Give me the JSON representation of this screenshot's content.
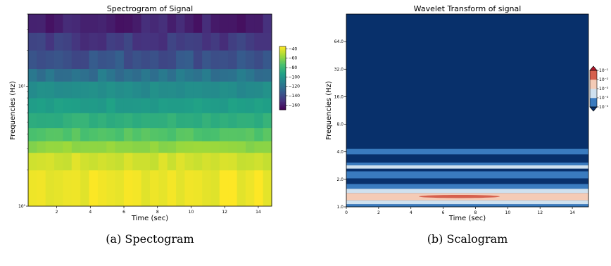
{
  "captions": {
    "a": "(a) Spectogram",
    "b": "(b) Scalogram"
  },
  "colors": {
    "viridis": [
      "#440154",
      "#46337e",
      "#365c8d",
      "#277f8e",
      "#1fa187",
      "#4ac16d",
      "#a0da39",
      "#fde725"
    ],
    "wavelet_levels": [
      "#08306b",
      "#3a7bbf",
      "#cfe1ef",
      "#f4cbb6",
      "#d6604d",
      "#b2182b"
    ]
  },
  "chart_data": [
    {
      "type": "heatmap",
      "title": "Spectrogram of Signal",
      "xlabel": "Time (sec)",
      "ylabel": "Frequencies (Hz)",
      "xlim": [
        0.3,
        14.8
      ],
      "yscale": "log",
      "ylim": [
        1,
        40
      ],
      "x_ticks": [
        2,
        4,
        6,
        8,
        10,
        12,
        14
      ],
      "y_ticks": [
        {
          "value": 1,
          "label": "10⁰"
        },
        {
          "value": 10,
          "label": "10¹"
        }
      ],
      "colorbar": {
        "ticks": [
          -40,
          -60,
          -80,
          -100,
          -120,
          -140,
          -160
        ],
        "range": [
          -170,
          -35
        ]
      },
      "frequency_band_level_db": [
        {
          "f_low": 1.0,
          "f_high": 2.0,
          "level": -38
        },
        {
          "f_low": 2.0,
          "f_high": 2.8,
          "level": -44
        },
        {
          "f_low": 2.8,
          "f_high": 3.5,
          "level": -58
        },
        {
          "f_low": 3.5,
          "f_high": 4.5,
          "level": -72
        },
        {
          "f_low": 4.5,
          "f_high": 6.0,
          "level": -84
        },
        {
          "f_low": 6.0,
          "f_high": 8.0,
          "level": -95
        },
        {
          "f_low": 8.0,
          "f_high": 11.0,
          "level": -105
        },
        {
          "f_low": 11.0,
          "f_high": 14.0,
          "level": -118
        },
        {
          "f_low": 14.0,
          "f_high": 20.0,
          "level": -135
        },
        {
          "f_low": 20.0,
          "f_high": 28.0,
          "level": -148
        },
        {
          "f_low": 28.0,
          "f_high": 40.0,
          "level": -158
        }
      ]
    },
    {
      "type": "heatmap",
      "title": "Wavelet Transform of signal",
      "xlabel": "Time (sec)",
      "ylabel": "Frequencies (Hz)",
      "xlim": [
        0,
        15
      ],
      "yscale": "log2",
      "ylim": [
        1,
        128
      ],
      "x_ticks": [
        0,
        2,
        4,
        6,
        8,
        10,
        12,
        14
      ],
      "y_ticks": [
        {
          "value": 1,
          "label": "1.0"
        },
        {
          "value": 2,
          "label": "2.0"
        },
        {
          "value": 4,
          "label": "4.0"
        },
        {
          "value": 8,
          "label": "8.0"
        },
        {
          "value": 16,
          "label": "16.0"
        },
        {
          "value": 32,
          "label": "32.0"
        },
        {
          "value": 64,
          "label": "64.0"
        }
      ],
      "colorbar": {
        "labels": [
          "10⁻⁵",
          "10⁻⁴",
          "10⁻³",
          "10⁻²",
          "10⁻¹"
        ],
        "level_count": 6
      },
      "bands": [
        {
          "f_low": 1.0,
          "f_high": 1.07,
          "level": 1
        },
        {
          "f_low": 1.07,
          "f_high": 1.18,
          "level": 2
        },
        {
          "f_low": 1.18,
          "f_high": 1.42,
          "level": 3
        },
        {
          "f_low": 1.26,
          "f_high": 1.34,
          "level": 4,
          "t_start": 4.5,
          "t_end": 9.5
        },
        {
          "f_low": 1.42,
          "f_high": 1.58,
          "level": 2
        },
        {
          "f_low": 1.58,
          "f_high": 1.78,
          "level": 1
        },
        {
          "f_low": 1.78,
          "f_high": 2.05,
          "level": 0
        },
        {
          "f_low": 2.05,
          "f_high": 2.45,
          "level": 1
        },
        {
          "f_low": 2.45,
          "f_high": 2.62,
          "level": 0
        },
        {
          "f_low": 2.62,
          "f_high": 2.85,
          "level": 2
        },
        {
          "f_low": 2.85,
          "f_high": 3.05,
          "level": 1
        },
        {
          "f_low": 3.05,
          "f_high": 3.75,
          "level": 0
        },
        {
          "f_low": 3.75,
          "f_high": 4.3,
          "level": 1
        }
      ]
    }
  ]
}
